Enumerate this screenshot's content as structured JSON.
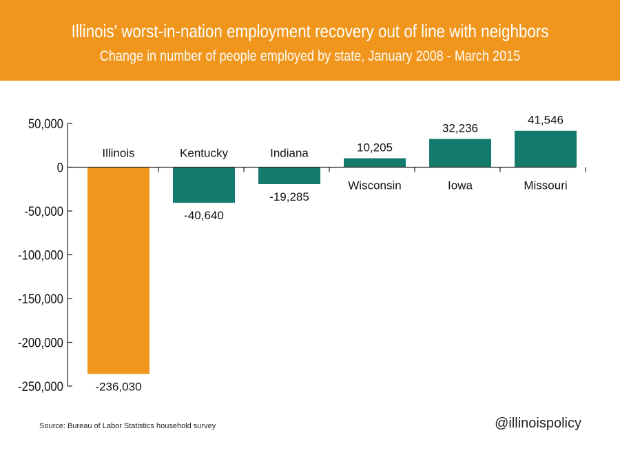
{
  "header": {
    "title": "Illinois' worst-in-nation employment recovery out of line with neighbors",
    "subtitle": "Change in number of people employed by state, January 2008 - March 2015"
  },
  "colors": {
    "header_bg": "#f0961d",
    "highlight_bar": "#f0961d",
    "bar": "#147a6b",
    "axis": "#222222"
  },
  "chart_data": {
    "type": "bar",
    "categories": [
      "Illinois",
      "Kentucky",
      "Indiana",
      "Wisconsin",
      "Iowa",
      "Missouri"
    ],
    "values": [
      -236030,
      -40640,
      -19285,
      10205,
      32236,
      41546
    ],
    "value_labels": [
      "-236,030",
      "-40,640",
      "-19,285",
      "10,205",
      "32,236",
      "41,546"
    ],
    "highlight": "Illinois",
    "ylim": [
      -250000,
      50000
    ],
    "yticks": [
      50000,
      0,
      -50000,
      -100000,
      -150000,
      -200000,
      -250000
    ],
    "ytick_labels": [
      "50,000",
      "0",
      "-50,000",
      "-100,000",
      "-150,000",
      "-200,000",
      "-250,000"
    ],
    "grid": false,
    "xlabel": "",
    "ylabel": ""
  },
  "footer": {
    "source": "Source: Bureau of Labor Statistics household survey",
    "handle": "@illinoispolicy"
  }
}
